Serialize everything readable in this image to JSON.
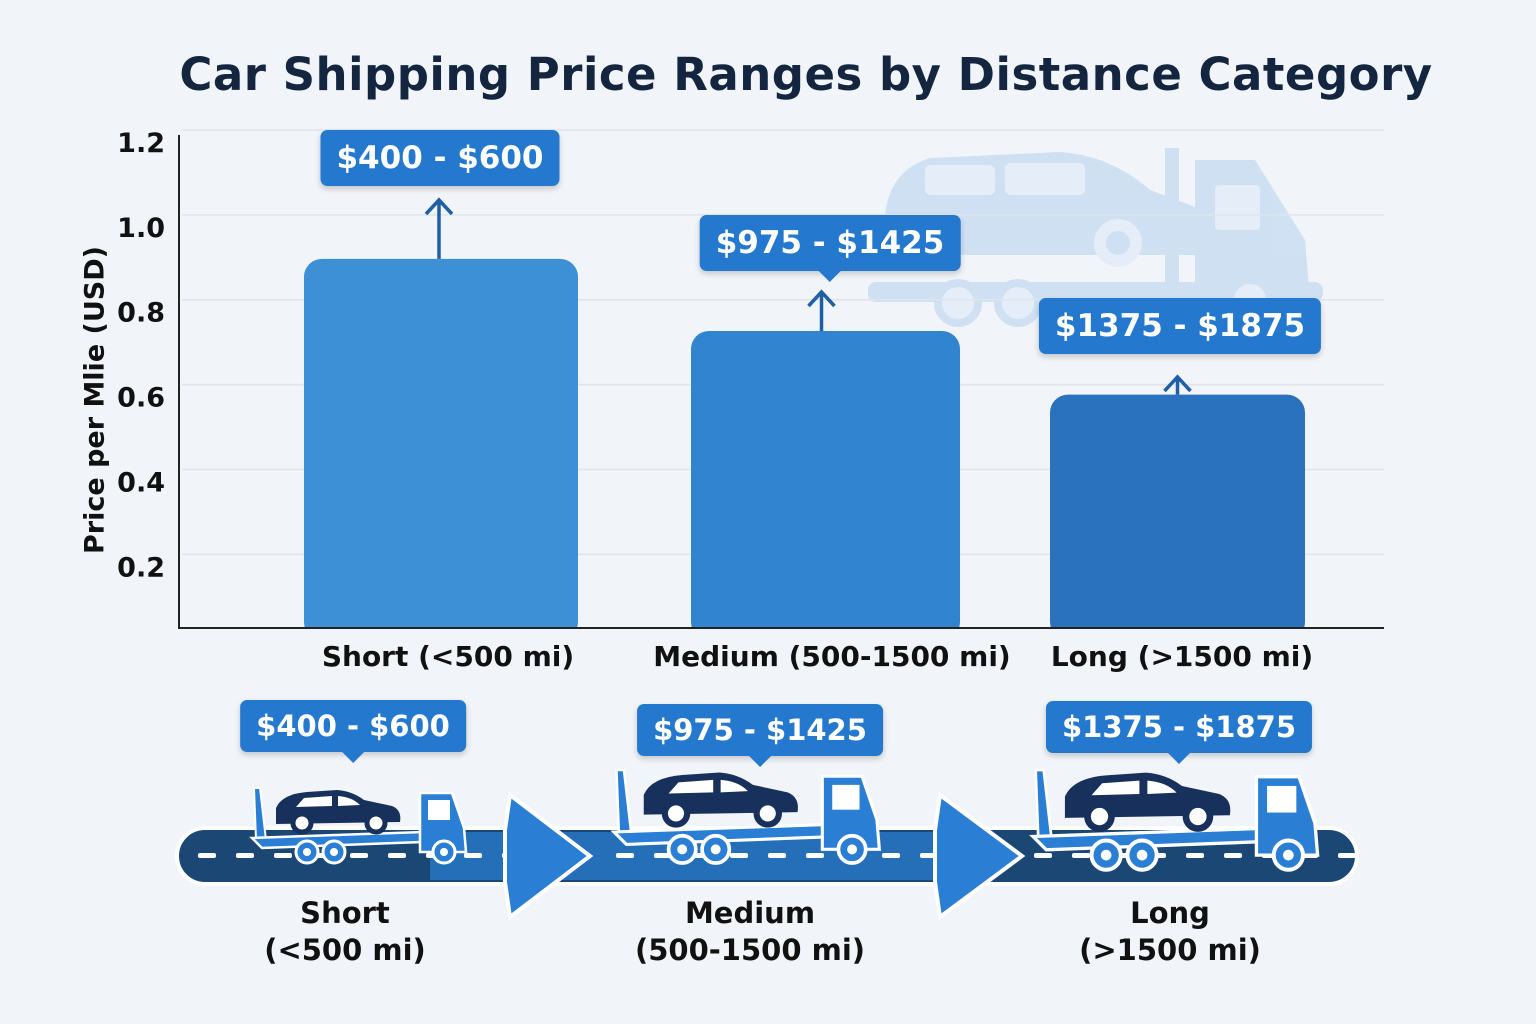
{
  "chart_data": {
    "type": "bar",
    "title": "Car Shipping Price Ranges by Distance Category",
    "xlabel": "",
    "ylabel": "Price per Mlie (USD)",
    "categories": [
      "Short (<500 mi)",
      "Medium (500-1500 mi)",
      "Long (>1500 mi)"
    ],
    "values": [
      0.92,
      0.75,
      0.6
    ],
    "data_labels": [
      "$400 - $600",
      "$975 - $1425",
      "$1375 - $1875"
    ],
    "yticks": [
      0.2,
      0.4,
      0.6,
      0.8,
      1.0,
      1.2
    ],
    "ytick_labels": [
      "0.2",
      "0.4",
      "0.6",
      "0.8",
      "1.0",
      "1.2"
    ],
    "ylim": [
      0.05,
      1.2
    ],
    "grid": true,
    "bar_colors": [
      "#3d8fd6",
      "#3184cf",
      "#2a72bd"
    ]
  },
  "timeline": {
    "stages": [
      {
        "price": "$400 - $600",
        "label_line1": "Short",
        "label_line2": "(<500 mi)"
      },
      {
        "price": "$975 - $1425",
        "label_line1": "Medium",
        "label_line2": "(500-1500 mi)"
      },
      {
        "price": "$1375 - $1875",
        "label_line1": "Long",
        "label_line2": "(>1500 mi)"
      }
    ],
    "icons": [
      "car-carrier-truck-icon",
      "arrow-right-icon",
      "road-icon"
    ],
    "colors": {
      "road": "#1b4775",
      "arrow": "#2a7fd4",
      "car": "#17315c",
      "truck": "#2a7fd4"
    }
  }
}
